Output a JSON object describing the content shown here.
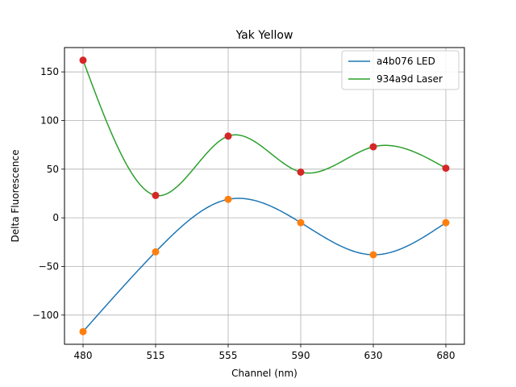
{
  "chart_data": {
    "type": "line",
    "title": "Yak Yellow",
    "xlabel": "Channel (nm)",
    "ylabel": "Delta Fluorescence",
    "categories": [
      "480",
      "515",
      "555",
      "590",
      "630",
      "680"
    ],
    "ylim": [
      -130,
      175
    ],
    "yticks": [
      -100,
      -50,
      0,
      50,
      100,
      150
    ],
    "grid": true,
    "legend_position": "top-right",
    "series": [
      {
        "name": "a4b076 LED",
        "values": [
          -117,
          -35,
          19,
          -5,
          -38,
          -5
        ],
        "line_color": "#1f77b4",
        "marker_color": "#ff7f0e"
      },
      {
        "name": "934a9d Laser",
        "values": [
          162,
          23,
          84,
          47,
          73,
          51
        ],
        "line_color": "#2ca02c",
        "marker_color": "#d62728"
      }
    ]
  }
}
